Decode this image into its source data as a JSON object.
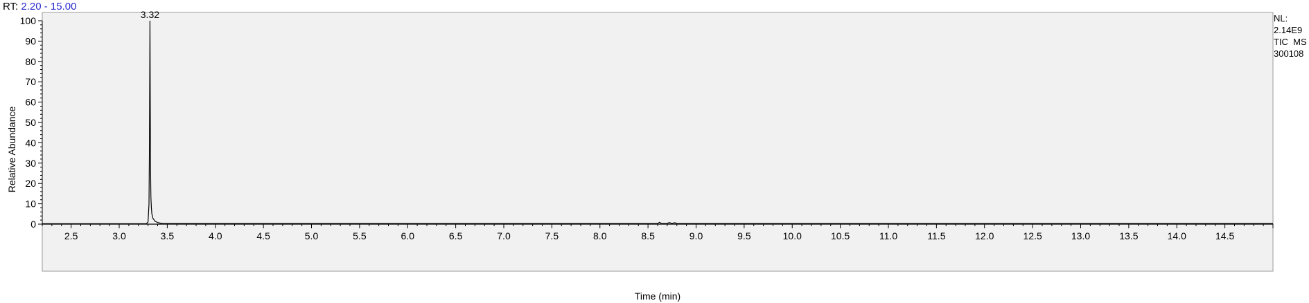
{
  "header": {
    "rt_prefix": "RT:",
    "rt_range": "2.20 - 15.00"
  },
  "side_info": {
    "nl_label": "NL:",
    "nl_value": "2.14E9",
    "trace": "TIC  MS",
    "sample": "300108"
  },
  "chart_data": {
    "type": "line",
    "xlabel": "Time (min)",
    "ylabel": "Relative Abundance",
    "xlim": [
      2.2,
      15.0
    ],
    "ylim": [
      0,
      100
    ],
    "xticks": [
      "2.5",
      "3.0",
      "3.5",
      "4.0",
      "4.5",
      "5.0",
      "5.5",
      "6.0",
      "6.5",
      "7.0",
      "7.5",
      "8.0",
      "8.5",
      "9.0",
      "9.5",
      "10.0",
      "10.5",
      "11.0",
      "11.5",
      "12.0",
      "12.5",
      "13.0",
      "13.5",
      "14.0",
      "14.5"
    ],
    "yticks": [
      "0",
      "10",
      "20",
      "30",
      "40",
      "50",
      "60",
      "70",
      "80",
      "90",
      "100"
    ],
    "grid": false,
    "peak_labels": [
      {
        "x": 3.32,
        "y": 100,
        "text": "3.32"
      }
    ],
    "series": [
      {
        "x": [
          2.2,
          3.28,
          3.3,
          3.31,
          3.315,
          3.318,
          3.32,
          3.322,
          3.325,
          3.328,
          3.33,
          3.335,
          3.34,
          3.35,
          3.37,
          3.4,
          3.45,
          8.6,
          8.62,
          8.64,
          8.7,
          8.72,
          8.75,
          8.78,
          8.8,
          8.85,
          15.0
        ],
        "y": [
          0.2,
          0.2,
          1,
          10,
          40,
          75,
          100,
          72,
          36,
          20,
          13,
          8,
          5,
          3,
          1.5,
          0.8,
          0.3,
          0.3,
          0.9,
          0.3,
          0.3,
          0.8,
          0.3,
          0.7,
          0.3,
          0.3,
          0.3
        ]
      }
    ]
  },
  "colors": {
    "plot_bg": "#f1f1f1",
    "trace": "#000000",
    "rt_range": "#2b2bd0"
  }
}
